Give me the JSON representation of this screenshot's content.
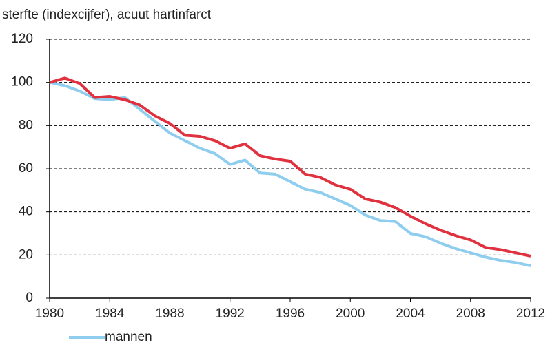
{
  "chart_data": {
    "type": "line",
    "title": "sterfte (indexcijfer), acuut hartinfarct",
    "x": [
      1980,
      1981,
      1982,
      1983,
      1984,
      1985,
      1986,
      1987,
      1988,
      1989,
      1990,
      1991,
      1992,
      1993,
      1994,
      1995,
      1996,
      1997,
      1998,
      1999,
      2000,
      2001,
      2002,
      2003,
      2004,
      2005,
      2006,
      2007,
      2008,
      2009,
      2010,
      2011,
      2012
    ],
    "series": [
      {
        "name": "mannen",
        "color": "#8fcdee",
        "values": [
          100,
          98.5,
          96,
          92.5,
          92,
          93,
          87.5,
          82,
          76.5,
          73,
          69.5,
          67,
          62,
          64,
          58,
          57.5,
          54,
          50.5,
          49,
          46,
          43,
          38.5,
          36,
          35.5,
          30,
          28.5,
          25.5,
          23,
          21,
          19,
          17.5,
          16.5,
          15
        ]
      },
      {
        "color": "#e0313f",
        "values": [
          100,
          102,
          99.5,
          93,
          93.5,
          92,
          89.5,
          84.5,
          81,
          75.5,
          75,
          73,
          69.5,
          71.5,
          66,
          64.5,
          63.5,
          57.5,
          56,
          52.5,
          50.5,
          46,
          44.5,
          42,
          38,
          34.5,
          31.5,
          29,
          27,
          23.5,
          22.5,
          21,
          19.5
        ]
      }
    ],
    "xlim": [
      1980,
      2012
    ],
    "xticks": [
      1980,
      1984,
      1988,
      1992,
      1996,
      2000,
      2004,
      2008,
      2012
    ],
    "ylim": [
      0,
      120
    ],
    "yticks": [
      0,
      20,
      40,
      60,
      80,
      100,
      120
    ],
    "grid": true
  }
}
